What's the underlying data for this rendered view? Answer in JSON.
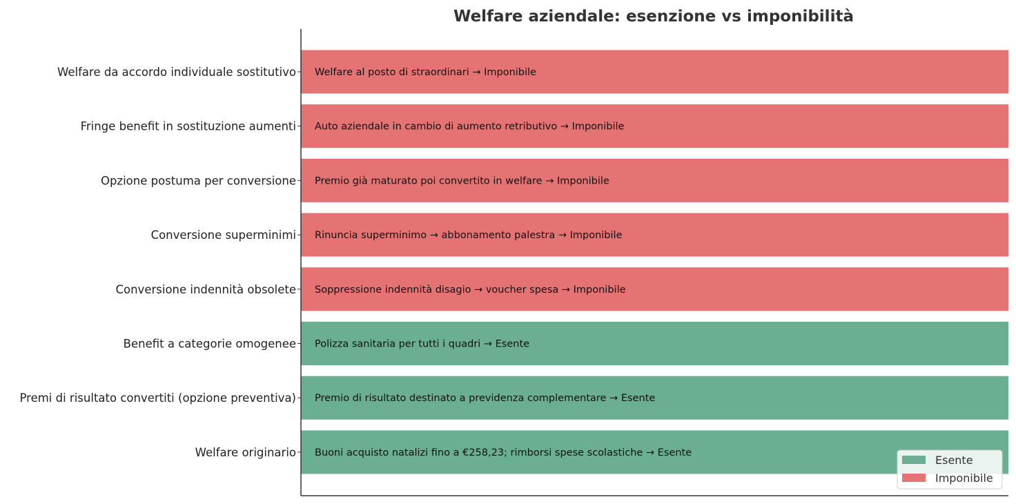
{
  "colors": {
    "Esente": "#6aaf92",
    "Imponibile": "#e57373"
  },
  "chart_data": {
    "type": "bar",
    "orientation": "horizontal",
    "title": "Welfare aziendale: esenzione vs imponibilità",
    "xlabel": "",
    "ylabel": "",
    "xlim": [
      0,
      1
    ],
    "grid": true,
    "legend": "bottom-right",
    "categories": [
      "Welfare da accordo individuale sostitutivo",
      "Fringe benefit in sostituzione aumenti",
      "Opzione postuma per conversione",
      "Conversione superminimi",
      "Conversione indennità obsolete",
      "Benefit a categorie omogenee",
      "Premi di risultato convertiti (opzione preventiva)",
      "Welfare originario"
    ],
    "values": [
      1,
      1,
      1,
      1,
      1,
      1,
      1,
      1
    ],
    "status": [
      "Imponibile",
      "Imponibile",
      "Imponibile",
      "Imponibile",
      "Imponibile",
      "Esente",
      "Esente",
      "Esente"
    ],
    "bar_labels": [
      "Welfare al posto di straordinari → Imponibile",
      "Auto aziendale in cambio di aumento retributivo → Imponibile",
      "Premio già maturato poi convertito in welfare → Imponibile",
      "Rinuncia superminimo → abbonamento palestra → Imponibile",
      "Soppressione indennità disagio → voucher spesa → Imponibile",
      "Polizza sanitaria per tutti i quadri → Esente",
      "Premio di risultato destinato a previdenza complementare → Esente",
      "Buoni acquisto natalizi fino a €258,23; rimborsi spese scolastiche → Esente"
    ],
    "legend_entries": [
      "Esente",
      "Imponibile"
    ]
  }
}
